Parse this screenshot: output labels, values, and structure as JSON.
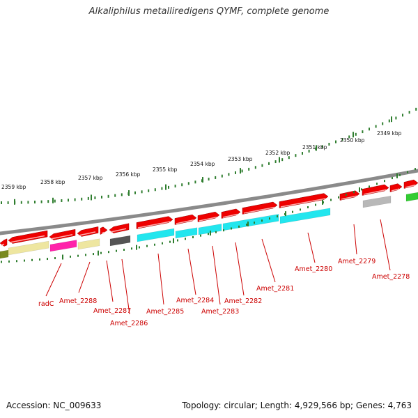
{
  "title": "Alkaliphilus metalliredigens QYMF, complete genome",
  "footer": {
    "accession": "Accession: NC_009633",
    "topology": "Topology: circular; Length: 4,929,566 bp; Genes: 4,763"
  },
  "scale_labels": [
    "2359 kbp",
    "2358 kbp",
    "2357 kbp",
    "2356 kbp",
    "2355 kbp",
    "2354 kbp",
    "2353 kbp",
    "2352 kbp",
    "2351 kbp",
    "2350 kbp",
    "2349 kbp"
  ],
  "gene_labels": [
    "radC",
    "Amet_2288",
    "Amet_2287",
    "Amet_2286",
    "Amet_2285",
    "Amet_2284",
    "Amet_2283",
    "Amet_2282",
    "Amet_2281",
    "Amet_2280",
    "Amet_2279",
    "Amet_2278"
  ],
  "colors": {
    "backbone": "#8a8a8a",
    "gene_arrow": "#ee0000",
    "tick": "#2e7d2e",
    "label": "#cc0000",
    "cyan": "#22e6ee",
    "magenta": "#ff22aa",
    "khaki": "#eee6a0",
    "dark_gray": "#555555",
    "light_gray": "#b8b8b8",
    "olive": "#7a8a20",
    "green": "#33cc33"
  }
}
